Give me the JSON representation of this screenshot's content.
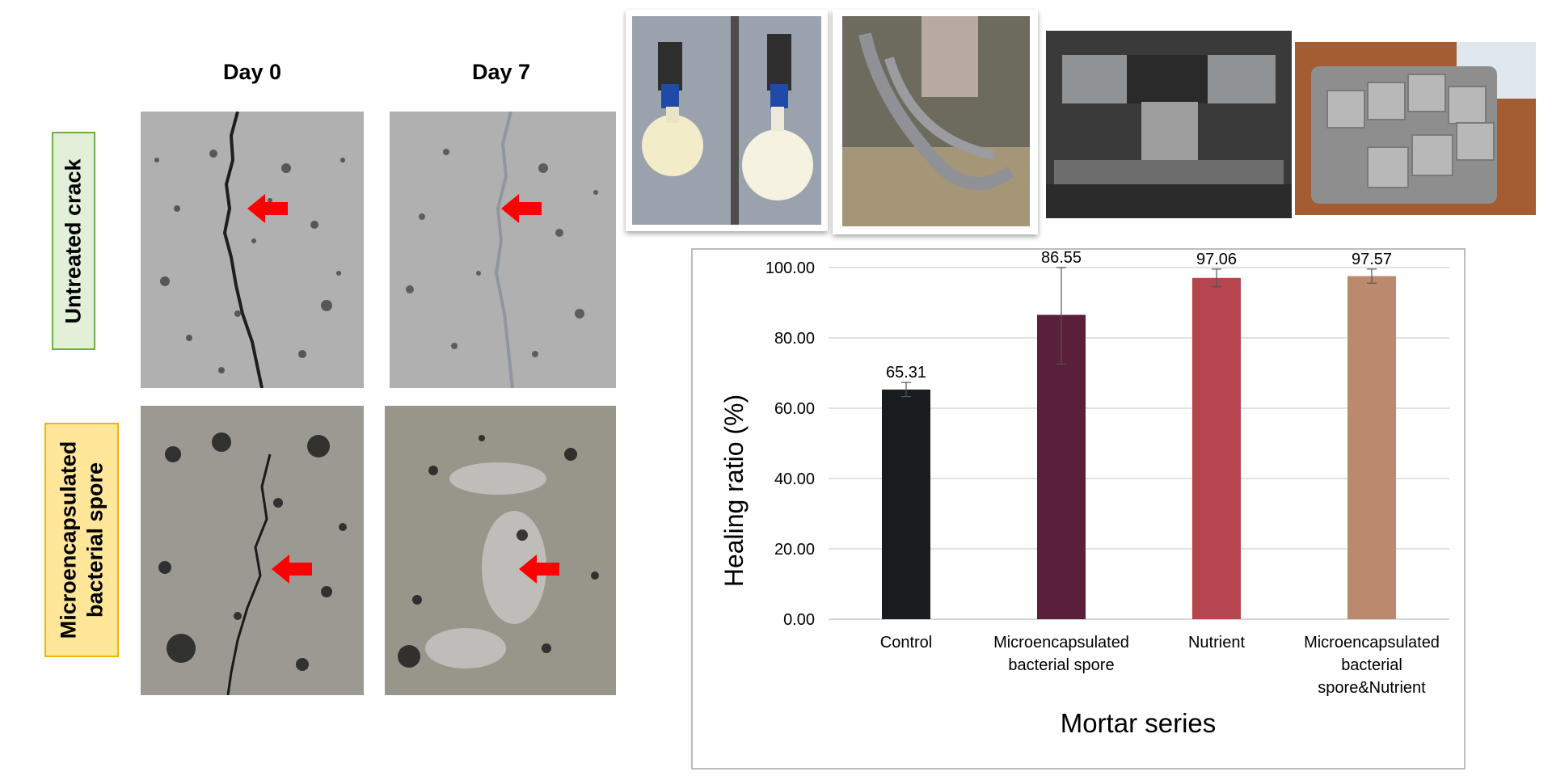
{
  "panel": {
    "col_headers": [
      "Day 0",
      "Day 7"
    ],
    "row_labels": [
      {
        "lines": [
          "Untreated crack"
        ],
        "fill": "#e2f0d9",
        "stroke": "#70ad47"
      },
      {
        "lines": [
          "Microencapsulated",
          "bacterial spore"
        ],
        "fill": "#ffe699",
        "stroke": "#f4b400"
      }
    ],
    "arrow_color": "#ff0000"
  },
  "chart_data": {
    "type": "bar",
    "categories": [
      [
        "Control"
      ],
      [
        "Microencapsulated",
        "bacterial spore"
      ],
      [
        "Nutrient"
      ],
      [
        "Microencapsulated",
        "bacterial",
        "spore&Nutrient"
      ]
    ],
    "values": [
      65.31,
      86.55,
      97.06,
      97.57
    ],
    "value_labels": [
      "65.31",
      "86.55",
      "97.06",
      "97.57"
    ],
    "error_bars": [
      2.0,
      14.0,
      2.5,
      2.0
    ],
    "colors": [
      "#191c1f",
      "#5a1f3a",
      "#b5454f",
      "#bb8a6e"
    ],
    "ylabel": "Healing ratio (%)",
    "xlabel": "Mortar series",
    "ylim": [
      0,
      100
    ],
    "yticks": [
      "0.00",
      "20.00",
      "40.00",
      "60.00",
      "80.00",
      "100.00"
    ],
    "grid": true
  }
}
